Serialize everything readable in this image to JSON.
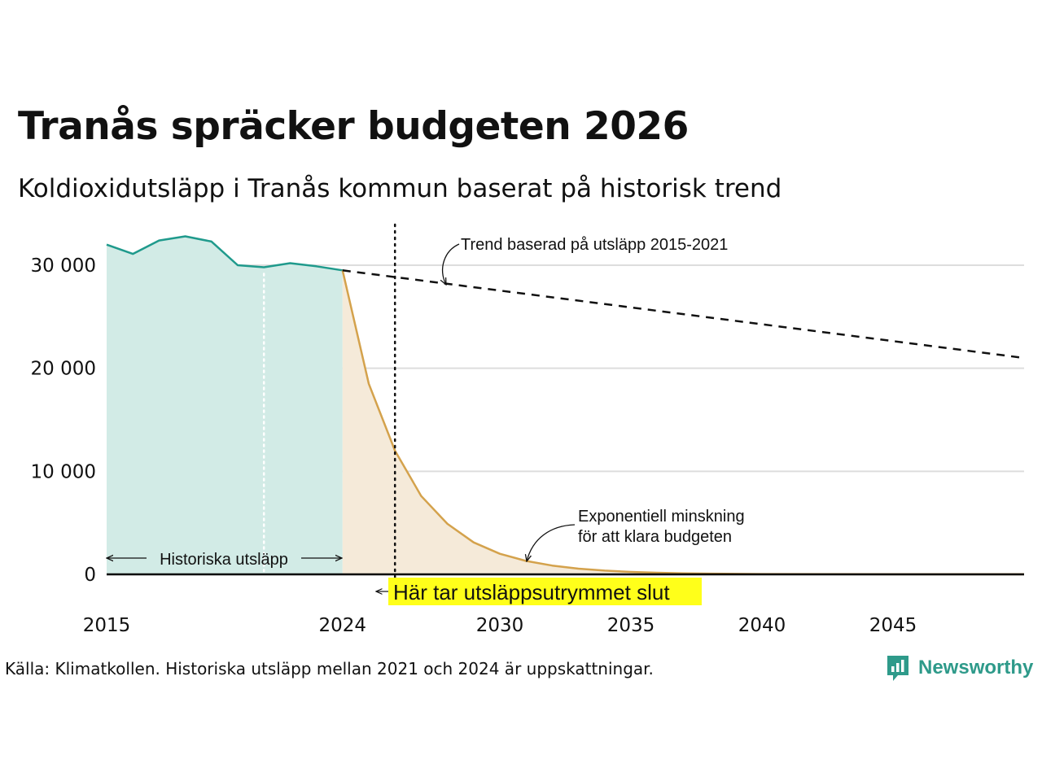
{
  "header": {
    "title": "Tranås spräcker budgeten 2026",
    "subtitle": "Koldioxidutsläpp i Tranås kommun baserat på historisk trend"
  },
  "footer": {
    "source": "Källa: Klimatkollen. Historiska utsläpp mellan 2021 och 2024 är uppskattningar.",
    "brand": "Newsworthy"
  },
  "colors": {
    "historical_line": "#1f9a8c",
    "historical_fill": "#d2ebe6",
    "reduction_line": "#d4a24c",
    "reduction_fill": "#f5ead9",
    "trend_line": "#111111",
    "highlight": "#ffff1a",
    "brand": "#2e9a8a"
  },
  "chart_data": {
    "type": "area",
    "xlim": [
      2015,
      2050
    ],
    "ylim": [
      0,
      33000
    ],
    "x_ticks": [
      2015,
      2024,
      2030,
      2035,
      2040,
      2045
    ],
    "y_ticks": [
      0,
      10000,
      20000,
      30000
    ],
    "y_tick_labels": [
      "0",
      "10 000",
      "20 000",
      "30 000"
    ],
    "grid": true,
    "series": [
      {
        "key": "historical",
        "x": [
          2015,
          2016,
          2017,
          2018,
          2019,
          2020,
          2021,
          2022,
          2023,
          2024
        ],
        "values": [
          32000,
          31100,
          32400,
          32800,
          32300,
          30000,
          29800,
          30200,
          29900,
          29500
        ]
      },
      {
        "key": "exponential",
        "x": [
          2024,
          2025,
          2026,
          2027,
          2028,
          2029,
          2030,
          2031,
          2032,
          2033,
          2034,
          2035,
          2036,
          2037,
          2038,
          2040,
          2045,
          2050
        ],
        "values": [
          29500,
          18500,
          12000,
          7600,
          4900,
          3100,
          2000,
          1300,
          850,
          550,
          360,
          240,
          160,
          100,
          70,
          30,
          10,
          5
        ]
      },
      {
        "key": "trend",
        "x": [
          2024,
          2050
        ],
        "values": [
          29500,
          21000
        ]
      }
    ],
    "markers": {
      "estimate_start_year": 2021,
      "budget_end_year": 2026
    },
    "annotations": {
      "trend": "Trend baserad på utsläpp 2015-2021",
      "reduction_line1": "Exponentiell minskning",
      "reduction_line2": "för att klara budgeten",
      "historical": "Historiska utsläpp",
      "budget_end": "Här tar utsläppsutrymmet slut"
    }
  }
}
